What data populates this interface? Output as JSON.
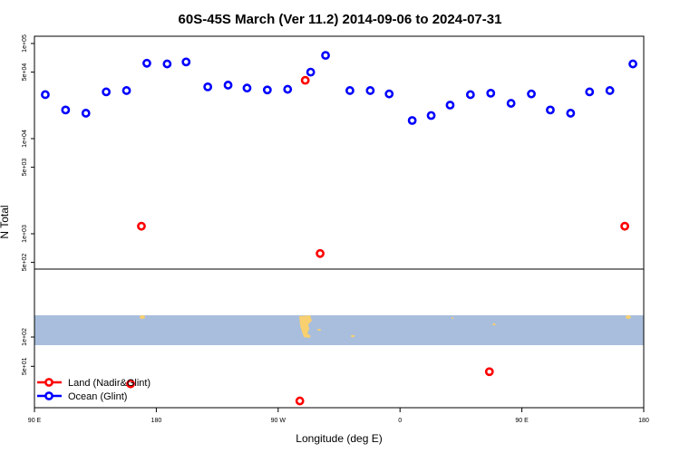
{
  "chart_data": {
    "type": "scatter",
    "title": "60S-45S March (Ver 11.2)   2014-09-06 to 2024-07-31",
    "xlabel": "Longitude (deg E)",
    "ylabel": "N Total",
    "x_ticks": [
      {
        "value": 90,
        "label": "90 E"
      },
      {
        "value": 180,
        "label": "180"
      },
      {
        "value": 270,
        "label": "90 W"
      },
      {
        "value": 360,
        "label": "0"
      },
      {
        "value": 450,
        "label": "90 E"
      },
      {
        "value": 540,
        "label": "180"
      }
    ],
    "xlim": [
      90,
      540
    ],
    "y_scale": "log",
    "ylim": [
      20,
      100000
    ],
    "y_ticks": [
      {
        "value": 50,
        "label": "5e+01"
      },
      {
        "value": 100,
        "label": "1e+02"
      },
      {
        "value": 500,
        "label": "5e+02"
      },
      {
        "value": 1000,
        "label": "1e+03"
      },
      {
        "value": 5000,
        "label": "5e+03"
      },
      {
        "value": 10000,
        "label": "1e+04"
      },
      {
        "value": 50000,
        "label": "5e+04"
      },
      {
        "value": 100000,
        "label": "1e+05"
      }
    ],
    "map_strip": {
      "ocean_color": "#a8bedc",
      "land_color": "#f8d070"
    },
    "series": [
      {
        "name": "Land (Nadir&Glint)",
        "color": "#ff0000",
        "points": [
          {
            "x": 169,
            "y": 1200
          },
          {
            "x": 290,
            "y": 41000
          },
          {
            "x": 301,
            "y": 620
          },
          {
            "x": 161,
            "y": 33
          },
          {
            "x": 286,
            "y": 22
          },
          {
            "x": 426,
            "y": 44
          },
          {
            "x": 526,
            "y": 1200
          }
        ]
      },
      {
        "name": "Ocean (Glint)",
        "color": "#0000ff",
        "points": [
          {
            "x": 98,
            "y": 29000
          },
          {
            "x": 113,
            "y": 20000
          },
          {
            "x": 128,
            "y": 18500
          },
          {
            "x": 143,
            "y": 31000
          },
          {
            "x": 158,
            "y": 32000
          },
          {
            "x": 173,
            "y": 62000
          },
          {
            "x": 188,
            "y": 61000
          },
          {
            "x": 202,
            "y": 64000
          },
          {
            "x": 218,
            "y": 35000
          },
          {
            "x": 233,
            "y": 36500
          },
          {
            "x": 247,
            "y": 34000
          },
          {
            "x": 262,
            "y": 32500
          },
          {
            "x": 277,
            "y": 33000
          },
          {
            "x": 294,
            "y": 50000
          },
          {
            "x": 305,
            "y": 75000
          },
          {
            "x": 323,
            "y": 32000
          },
          {
            "x": 338,
            "y": 32000
          },
          {
            "x": 352,
            "y": 29500
          },
          {
            "x": 369,
            "y": 15500
          },
          {
            "x": 383,
            "y": 17500
          },
          {
            "x": 397,
            "y": 22500
          },
          {
            "x": 412,
            "y": 29000
          },
          {
            "x": 427,
            "y": 30000
          },
          {
            "x": 442,
            "y": 23500
          },
          {
            "x": 457,
            "y": 29500
          },
          {
            "x": 471,
            "y": 20000
          },
          {
            "x": 486,
            "y": 18500
          },
          {
            "x": 500,
            "y": 31000
          },
          {
            "x": 515,
            "y": 32000
          },
          {
            "x": 532,
            "y": 61000
          }
        ]
      }
    ]
  }
}
